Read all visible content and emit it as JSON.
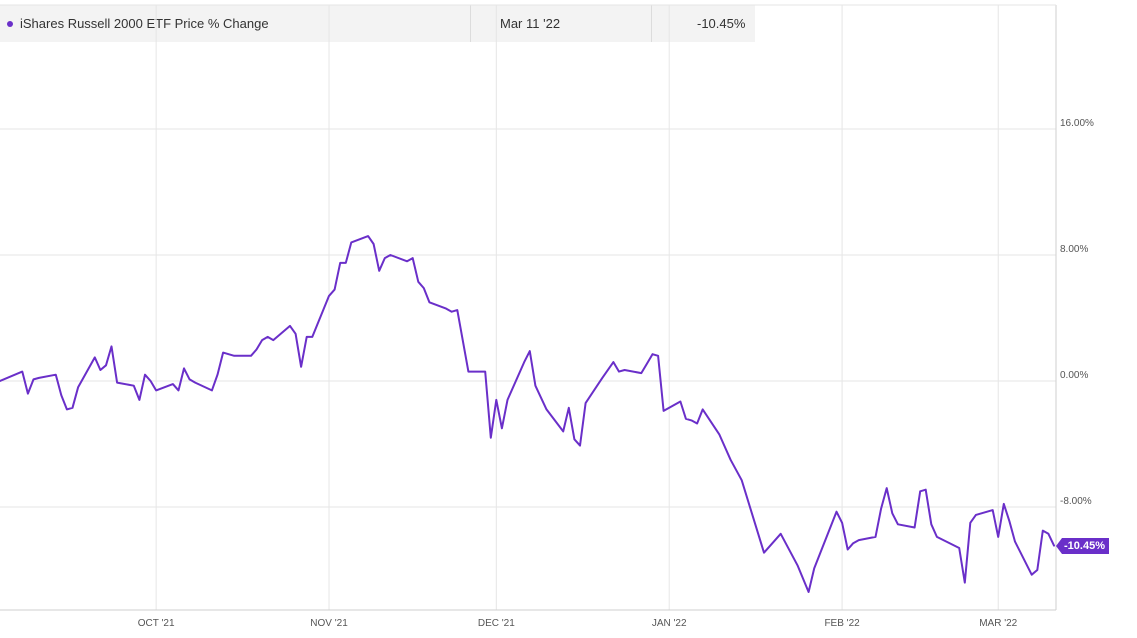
{
  "legend": {
    "series_name": "iShares Russell 2000 ETF Price % Change",
    "date": "Mar 11 '22",
    "value": "-10.45%"
  },
  "colors": {
    "line": "#6a2fc9",
    "grid": "#e6e6e6",
    "axis": "#cfcfcf",
    "tick_text": "#555555"
  },
  "chart_data": {
    "type": "line",
    "title": "",
    "xlabel": "",
    "ylabel": "",
    "x_ticks": [
      "OCT '21",
      "NOV '21",
      "DEC '21",
      "JAN '22",
      "FEB '22",
      "MAR '22"
    ],
    "x_tick_dates": [
      "2021-10-01",
      "2021-11-01",
      "2021-12-01",
      "2022-01-01",
      "2022-02-01",
      "2022-03-01"
    ],
    "y_ticks": [
      "16.00%",
      "8.00%",
      "0.00%",
      "-8.00%"
    ],
    "y_tick_values": [
      16,
      8,
      0,
      -8
    ],
    "ylim": [
      -14.6,
      22.8
    ],
    "xlim": [
      "2021-09-03",
      "2022-03-11"
    ],
    "grid": true,
    "last_value_label": "-10.45%",
    "series": [
      {
        "name": "iShares Russell 2000 ETF Price % Change",
        "points": [
          [
            "2021-09-03",
            0.0
          ],
          [
            "2021-09-07",
            0.6
          ],
          [
            "2021-09-08",
            -0.8
          ],
          [
            "2021-09-09",
            0.1
          ],
          [
            "2021-09-10",
            0.2
          ],
          [
            "2021-09-13",
            0.4
          ],
          [
            "2021-09-14",
            -0.9
          ],
          [
            "2021-09-15",
            -1.8
          ],
          [
            "2021-09-16",
            -1.7
          ],
          [
            "2021-09-17",
            -0.4
          ],
          [
            "2021-09-20",
            1.5
          ],
          [
            "2021-09-21",
            0.7
          ],
          [
            "2021-09-22",
            1.0
          ],
          [
            "2021-09-23",
            2.2
          ],
          [
            "2021-09-24",
            -0.1
          ],
          [
            "2021-09-27",
            -0.3
          ],
          [
            "2021-09-28",
            -1.2
          ],
          [
            "2021-09-29",
            0.4
          ],
          [
            "2021-09-30",
            0.0
          ],
          [
            "2021-10-01",
            -0.6
          ],
          [
            "2021-10-04",
            -0.2
          ],
          [
            "2021-10-05",
            -0.6
          ],
          [
            "2021-10-06",
            0.8
          ],
          [
            "2021-10-07",
            0.1
          ],
          [
            "2021-10-08",
            -0.1
          ],
          [
            "2021-10-11",
            -0.6
          ],
          [
            "2021-10-12",
            0.4
          ],
          [
            "2021-10-13",
            1.8
          ],
          [
            "2021-10-14",
            1.7
          ],
          [
            "2021-10-15",
            1.6
          ],
          [
            "2021-10-18",
            1.6
          ],
          [
            "2021-10-19",
            2.0
          ],
          [
            "2021-10-20",
            2.6
          ],
          [
            "2021-10-21",
            2.8
          ],
          [
            "2021-10-22",
            2.6
          ],
          [
            "2021-10-25",
            3.5
          ],
          [
            "2021-10-26",
            3.0
          ],
          [
            "2021-10-27",
            0.9
          ],
          [
            "2021-10-28",
            2.8
          ],
          [
            "2021-10-29",
            2.8
          ],
          [
            "2021-11-01",
            5.4
          ],
          [
            "2021-11-02",
            5.8
          ],
          [
            "2021-11-03",
            7.5
          ],
          [
            "2021-11-04",
            7.5
          ],
          [
            "2021-11-05",
            8.8
          ],
          [
            "2021-11-08",
            9.2
          ],
          [
            "2021-11-09",
            8.7
          ],
          [
            "2021-11-10",
            7.0
          ],
          [
            "2021-11-11",
            7.8
          ],
          [
            "2021-11-12",
            8.0
          ],
          [
            "2021-11-15",
            7.6
          ],
          [
            "2021-11-16",
            7.8
          ],
          [
            "2021-11-17",
            6.3
          ],
          [
            "2021-11-18",
            5.9
          ],
          [
            "2021-11-19",
            5.0
          ],
          [
            "2021-11-22",
            4.6
          ],
          [
            "2021-11-23",
            4.4
          ],
          [
            "2021-11-24",
            4.5
          ],
          [
            "2021-11-26",
            0.6
          ],
          [
            "2021-11-29",
            0.6
          ],
          [
            "2021-11-30",
            -3.6
          ],
          [
            "2021-12-01",
            -1.2
          ],
          [
            "2021-12-02",
            -3.0
          ],
          [
            "2021-12-03",
            -1.2
          ],
          [
            "2021-12-06",
            1.2
          ],
          [
            "2021-12-07",
            1.9
          ],
          [
            "2021-12-08",
            -0.3
          ],
          [
            "2021-12-10",
            -1.8
          ],
          [
            "2021-12-13",
            -3.2
          ],
          [
            "2021-12-14",
            -1.7
          ],
          [
            "2021-12-15",
            -3.7
          ],
          [
            "2021-12-16",
            -4.1
          ],
          [
            "2021-12-17",
            -1.4
          ],
          [
            "2021-12-20",
            0.2
          ],
          [
            "2021-12-22",
            1.2
          ],
          [
            "2021-12-23",
            0.6
          ],
          [
            "2021-12-24",
            0.7
          ],
          [
            "2021-12-27",
            0.5
          ],
          [
            "2021-12-28",
            1.1
          ],
          [
            "2021-12-29",
            1.7
          ],
          [
            "2021-12-30",
            1.6
          ],
          [
            "2021-12-31",
            -1.9
          ],
          [
            "2022-01-03",
            -1.3
          ],
          [
            "2022-01-04",
            -2.4
          ],
          [
            "2022-01-05",
            -2.5
          ],
          [
            "2022-01-06",
            -2.7
          ],
          [
            "2022-01-07",
            -1.8
          ],
          [
            "2022-01-10",
            -3.4
          ],
          [
            "2022-01-12",
            -5.0
          ],
          [
            "2022-01-14",
            -6.3
          ],
          [
            "2022-01-18",
            -10.9
          ],
          [
            "2022-01-21",
            -9.7
          ],
          [
            "2022-01-24",
            -11.7
          ],
          [
            "2022-01-26",
            -13.4
          ],
          [
            "2022-01-27",
            -11.9
          ],
          [
            "2022-01-31",
            -8.3
          ],
          [
            "2022-02-01",
            -9.0
          ],
          [
            "2022-02-02",
            -10.7
          ],
          [
            "2022-02-03",
            -10.3
          ],
          [
            "2022-02-04",
            -10.1
          ],
          [
            "2022-02-07",
            -9.9
          ],
          [
            "2022-02-08",
            -8.1
          ],
          [
            "2022-02-09",
            -6.8
          ],
          [
            "2022-02-10",
            -8.4
          ],
          [
            "2022-02-11",
            -9.1
          ],
          [
            "2022-02-14",
            -9.3
          ],
          [
            "2022-02-15",
            -7.0
          ],
          [
            "2022-02-16",
            -6.9
          ],
          [
            "2022-02-17",
            -9.1
          ],
          [
            "2022-02-18",
            -9.9
          ],
          [
            "2022-02-22",
            -10.6
          ],
          [
            "2022-02-23",
            -12.8
          ],
          [
            "2022-02-24",
            -9.0
          ],
          [
            "2022-02-25",
            -8.5
          ],
          [
            "2022-02-28",
            -8.2
          ],
          [
            "2022-03-01",
            -9.9
          ],
          [
            "2022-03-02",
            -7.8
          ],
          [
            "2022-03-03",
            -8.9
          ],
          [
            "2022-03-04",
            -10.2
          ],
          [
            "2022-03-07",
            -12.3
          ],
          [
            "2022-03-08",
            -12.0
          ],
          [
            "2022-03-09",
            -9.5
          ],
          [
            "2022-03-10",
            -9.7
          ],
          [
            "2022-03-11",
            -10.45
          ]
        ]
      }
    ]
  }
}
